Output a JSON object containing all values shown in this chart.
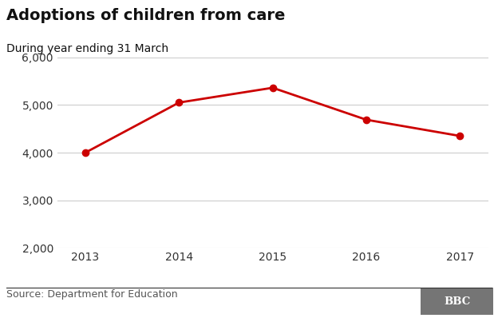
{
  "title": "Adoptions of children from care",
  "subtitle": "During year ending 31 March",
  "x": [
    2013,
    2014,
    2015,
    2016,
    2017
  ],
  "y": [
    4000,
    5050,
    5360,
    4690,
    4350
  ],
  "line_color": "#cc0000",
  "marker_color": "#cc0000",
  "marker_size": 6,
  "line_width": 2.0,
  "ylim": [
    2000,
    6000
  ],
  "yticks": [
    2000,
    3000,
    4000,
    5000,
    6000
  ],
  "xticks": [
    2013,
    2014,
    2015,
    2016,
    2017
  ],
  "grid_color": "#cccccc",
  "bg_color": "#ffffff",
  "source_text": "Source: Department for Education",
  "bbc_text": "BBC",
  "title_fontsize": 14,
  "subtitle_fontsize": 10,
  "tick_fontsize": 10,
  "source_fontsize": 9,
  "bbc_bg_color": "#757575",
  "bottom_line_color": "#333333"
}
